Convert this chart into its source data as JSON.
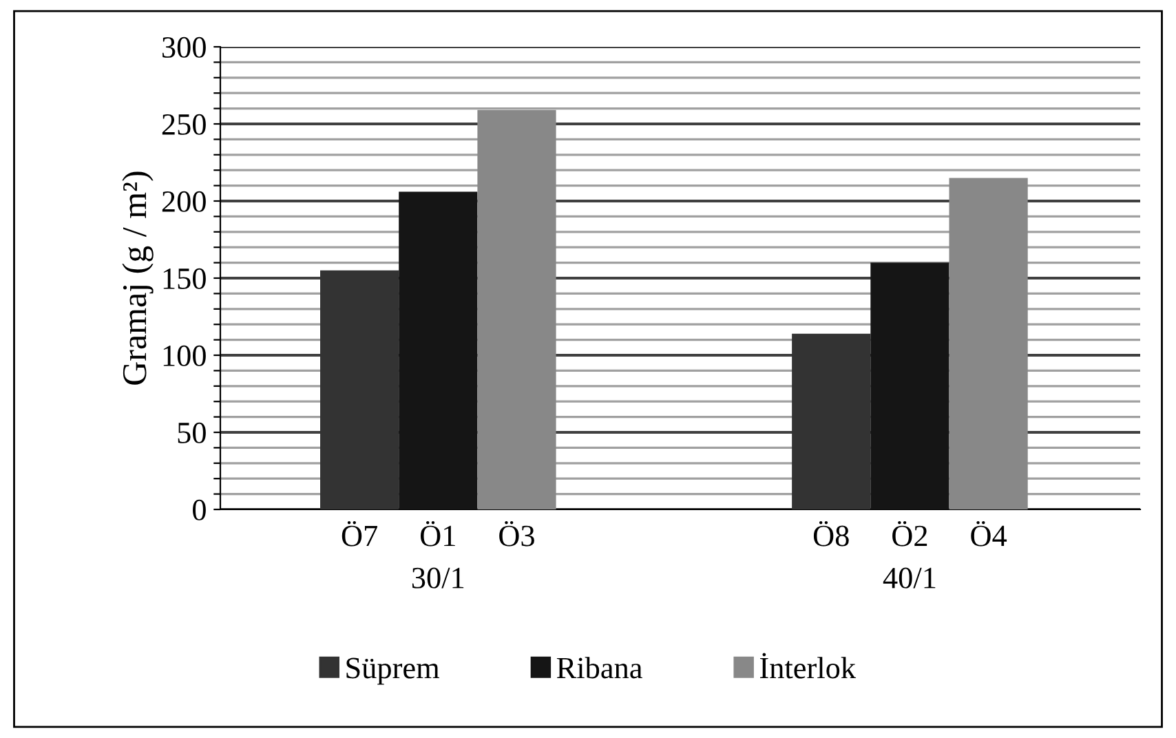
{
  "chart_data": {
    "type": "bar",
    "ylabel": "Gramaj (g / m²)",
    "categories": [
      "Ö7",
      "Ö1",
      "Ö3",
      null,
      null,
      null,
      "Ö8",
      "Ö2",
      "Ö4"
    ],
    "series": [
      {
        "name": "Süprem",
        "color": "#333333",
        "values": [
          155,
          null,
          null,
          null,
          null,
          null,
          114,
          null,
          null
        ]
      },
      {
        "name": "Ribana",
        "color": "#151515",
        "values": [
          null,
          206,
          null,
          null,
          null,
          null,
          null,
          160,
          null
        ]
      },
      {
        "name": "İnterlok",
        "color": "#888888",
        "values": [
          null,
          null,
          259,
          null,
          null,
          null,
          null,
          null,
          215
        ]
      }
    ],
    "annotations": [
      "30/1",
      "40/1"
    ],
    "ylim": [
      0,
      300
    ],
    "yticks": [
      0,
      {
        "value": 10,
        "label": null
      },
      {
        "value": 20,
        "label": null
      },
      {
        "value": 30,
        "label": null
      },
      {
        "value": 40,
        "label": null
      },
      50,
      {
        "value": 60,
        "label": null
      },
      {
        "value": 70,
        "label": null
      },
      {
        "value": 80,
        "label": null
      },
      {
        "value": 90,
        "label": null
      },
      100,
      {
        "value": 110,
        "label": null
      },
      {
        "value": 120,
        "label": null
      },
      {
        "value": 130,
        "label": null
      },
      {
        "value": 140,
        "label": null
      },
      150,
      {
        "value": 160,
        "label": null
      },
      {
        "value": 170,
        "label": null
      },
      {
        "value": 180,
        "label": null
      },
      {
        "value": 190,
        "label": null
      },
      200,
      {
        "value": 210,
        "label": null
      },
      {
        "value": 220,
        "label": null
      },
      {
        "value": 230,
        "label": null
      },
      {
        "value": 240,
        "label": null
      },
      250,
      {
        "value": 260,
        "label": null
      },
      {
        "value": 270,
        "label": null
      },
      {
        "value": 280,
        "label": null
      },
      {
        "value": 290,
        "label": null
      },
      300
    ],
    "grid": "y",
    "legend": "bottom"
  }
}
